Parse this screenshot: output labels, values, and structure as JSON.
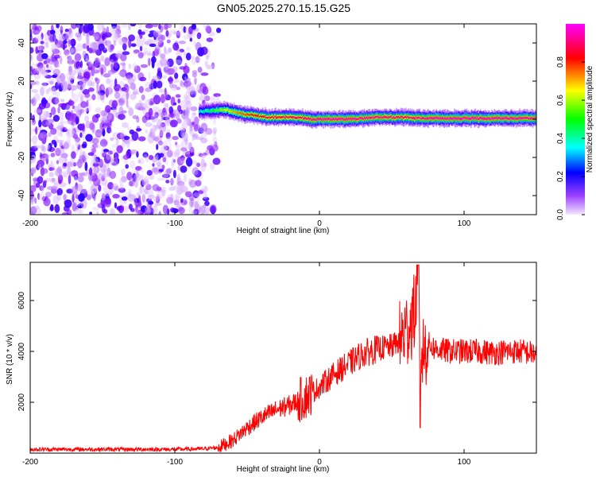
{
  "title": "GN05.2025.270.15.15.G25",
  "chart_data": [
    {
      "type": "heatmap",
      "xlabel": "Height of straight line (km)",
      "ylabel": "Frequency (Hz)",
      "xlim": [
        -200,
        150
      ],
      "ylim": [
        -50,
        50
      ],
      "x_ticks": [
        -200,
        -100,
        0,
        100
      ],
      "x_tick_labels": [
        "-200",
        "-100",
        "0",
        "100"
      ],
      "y_ticks": [
        -40,
        -20,
        0,
        20,
        40
      ],
      "y_tick_labels": [
        "-40",
        "-20",
        "0",
        "20",
        "40"
      ],
      "colorbar": {
        "label": "Normalized spectral amplitude",
        "range": [
          0,
          1
        ],
        "ticks": [
          0.0,
          0.2,
          0.4,
          0.6,
          0.8
        ],
        "tick_labels": [
          "0.0",
          "0.2",
          "0.4",
          "0.6",
          "0.8"
        ],
        "colormap": [
          "#f3e8ff",
          "#7b00ff",
          "#0000ff",
          "#00ffff",
          "#00ff00",
          "#ffff00",
          "#ff0000",
          "#ff00ff"
        ]
      },
      "noise_region_x": [
        -200,
        -65
      ],
      "signal_ridge": {
        "x": [
          -83,
          -75,
          -65,
          -55,
          -45,
          -35,
          -25,
          -15,
          -5,
          0,
          10,
          20,
          30,
          40,
          50,
          60,
          70,
          80,
          90,
          100,
          110,
          120,
          130,
          140,
          150
        ],
        "freq": [
          4,
          4.5,
          5,
          3,
          2,
          1,
          1,
          1,
          0,
          0,
          0,
          0,
          0.5,
          1,
          1,
          1,
          0.5,
          0.5,
          0.5,
          0.5,
          0.5,
          0.5,
          0.5,
          0.5,
          0.5
        ],
        "amplitude": [
          0.45,
          0.55,
          0.7,
          0.8,
          0.85,
          0.9,
          0.9,
          0.92,
          0.95,
          0.97,
          0.97,
          0.97,
          0.95,
          0.95,
          0.93,
          0.92,
          0.95,
          0.97,
          0.97,
          0.97,
          0.97,
          0.97,
          0.97,
          0.96,
          0.95
        ]
      }
    },
    {
      "type": "line",
      "xlabel": "Height of straight line (km)",
      "ylabel": "SNR (10 * v/v)",
      "xlim": [
        -200,
        150
      ],
      "ylim": [
        0,
        7500
      ],
      "x_ticks": [
        -200,
        -100,
        0,
        100
      ],
      "x_tick_labels": [
        "-200",
        "-100",
        "0",
        "100"
      ],
      "y_ticks": [
        2000,
        4000,
        6000
      ],
      "y_tick_labels": [
        "2000",
        "4000",
        "6000"
      ],
      "color": "#ff0000",
      "series": [
        {
          "x": [
            -200,
            -180,
            -160,
            -140,
            -120,
            -100,
            -80,
            -70,
            -60,
            -50,
            -40,
            -30,
            -20,
            -10,
            0,
            10,
            20,
            30,
            40,
            50,
            55,
            60,
            65,
            68,
            70,
            75,
            80,
            90,
            100,
            110,
            120,
            130,
            140,
            150
          ],
          "y": [
            150,
            150,
            150,
            150,
            150,
            150,
            170,
            220,
            500,
            1000,
            1400,
            1700,
            1900,
            2200,
            2600,
            3100,
            3500,
            3900,
            4100,
            4200,
            4400,
            4800,
            5400,
            6000,
            3800,
            4300,
            4100,
            4000,
            4000,
            4000,
            3950,
            4000,
            4000,
            3900
          ]
        }
      ]
    }
  ]
}
